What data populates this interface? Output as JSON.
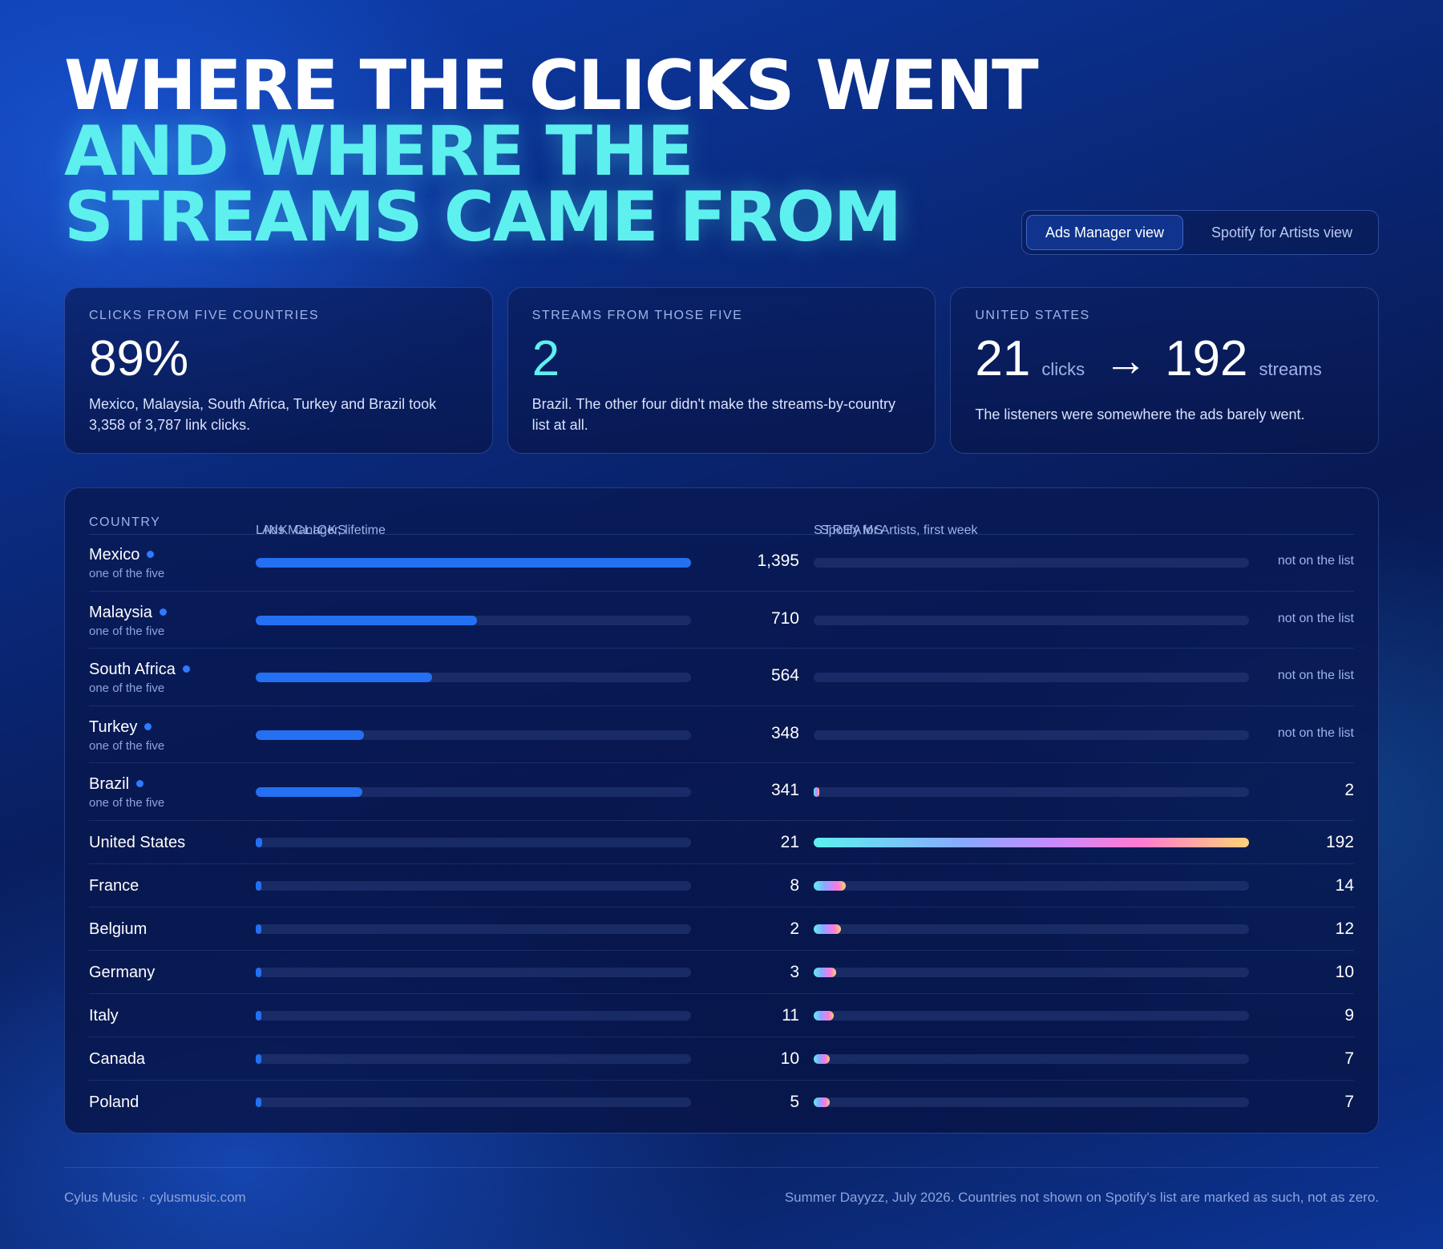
{
  "title": {
    "line1": "WHERE THE CLICKS WENT",
    "line2": "AND WHERE THE",
    "line3": "STREAMS CAME FROM"
  },
  "toggle": {
    "active": "Ads Manager view",
    "inactive": "Spotify for Artists view"
  },
  "kpis": [
    {
      "caption": "CLICKS FROM FIVE COUNTRIES",
      "value": "89%",
      "description": "Mexico, Malaysia, South Africa, Turkey and Brazil took 3,358 of 3,787 link clicks."
    },
    {
      "caption": "STREAMS FROM THOSE FIVE",
      "value": "2",
      "description": "Brazil. The other four didn't make the streams-by-country list at all."
    },
    {
      "caption": "UNITED STATES",
      "value_clicks": "21",
      "clicks_unit": "clicks",
      "arrow": "→",
      "value_streams": "192",
      "streams_unit": "streams",
      "description": "The listeners were somewhere the ads barely went."
    }
  ],
  "table": {
    "col_country": "COUNTRY",
    "col_clicks": "LINK CLICKS",
    "col_clicks_sub": "Ads Manager, lifetime",
    "col_streams": "STREAMS",
    "col_streams_sub": "Spotify for Artists, first week",
    "not_listed_label": "not on the list",
    "top_five_label": "one of the five"
  },
  "chart_data": {
    "type": "bar",
    "categories": [
      "Mexico",
      "Malaysia",
      "South Africa",
      "Turkey",
      "Brazil",
      "United States",
      "France",
      "Belgium",
      "Germany",
      "Italy",
      "Canada",
      "Poland"
    ],
    "top_five": [
      true,
      true,
      true,
      true,
      true,
      false,
      false,
      false,
      false,
      false,
      false,
      false
    ],
    "series": [
      {
        "name": "LINK CLICKS",
        "values": [
          1395,
          710,
          564,
          348,
          341,
          21,
          8,
          2,
          3,
          11,
          10,
          5
        ],
        "xlim": [
          0,
          1395
        ]
      },
      {
        "name": "STREAMS",
        "values": [
          null,
          null,
          null,
          null,
          2,
          192,
          14,
          12,
          10,
          9,
          7,
          7
        ],
        "xlim": [
          0,
          192
        ]
      }
    ],
    "colors": {
      "clicks": "#2470f2",
      "streams_gradient": [
        "#5ef0ee",
        "#8aa8ff",
        "#c78cff",
        "#ff7bd0",
        "#ffd27a"
      ]
    }
  },
  "footer": {
    "left": "Cylus Music · cylusmusic.com",
    "right": "Summer Dayyzz, July 2026. Countries not shown on Spotify's list are marked as such, not as zero."
  }
}
